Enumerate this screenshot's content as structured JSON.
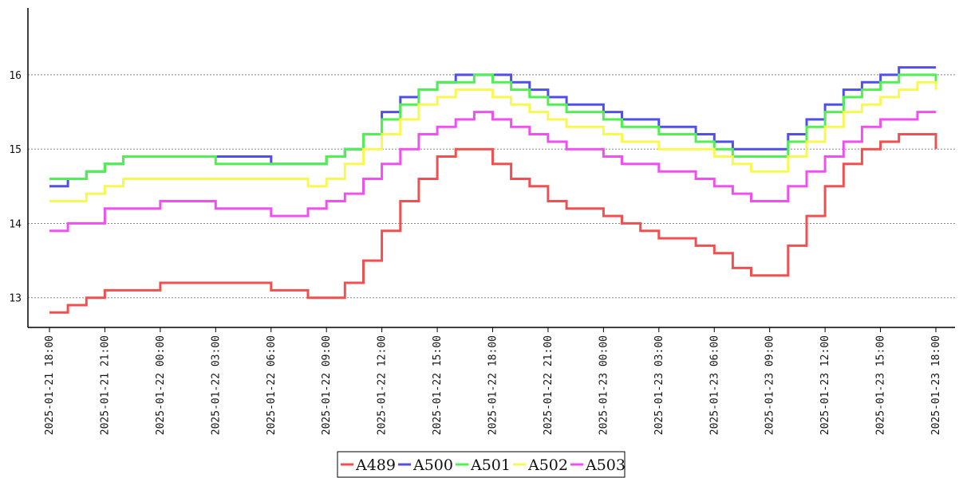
{
  "chart_data": {
    "type": "line",
    "title": "",
    "xlabel": "",
    "ylabel": "",
    "x_ticks": [
      "2025-01-21 18:00",
      "2025-01-21 21:00",
      "2025-01-22 00:00",
      "2025-01-22 03:00",
      "2025-01-22 06:00",
      "2025-01-22 09:00",
      "2025-01-22 12:00",
      "2025-01-22 15:00",
      "2025-01-22 18:00",
      "2025-01-22 21:00",
      "2025-01-23 00:00",
      "2025-01-23 03:00",
      "2025-01-23 06:00",
      "2025-01-23 09:00",
      "2025-01-23 12:00",
      "2025-01-23 15:00",
      "2025-01-23 18:00"
    ],
    "y_ticks": [
      "13",
      "14",
      "15",
      "16"
    ],
    "ylim": [
      12.6,
      16.9
    ],
    "grid": "horizontal dotted",
    "legend_position": "bottom-center",
    "series": [
      {
        "name": "A489",
        "color": "#f05050",
        "x": [
          "2025-01-21 18:00",
          "2025-01-21 19:00",
          "2025-01-21 20:00",
          "2025-01-21 21:00",
          "2025-01-21 22:00",
          "2025-01-22 00:00",
          "2025-01-22 03:00",
          "2025-01-22 06:00",
          "2025-01-22 08:00",
          "2025-01-22 09:00",
          "2025-01-22 10:00",
          "2025-01-22 11:00",
          "2025-01-22 12:00",
          "2025-01-22 13:00",
          "2025-01-22 14:00",
          "2025-01-22 15:00",
          "2025-01-22 16:00",
          "2025-01-22 17:00",
          "2025-01-22 18:00",
          "2025-01-22 19:00",
          "2025-01-22 20:00",
          "2025-01-22 21:00",
          "2025-01-22 22:00",
          "2025-01-23 00:00",
          "2025-01-23 01:00",
          "2025-01-23 02:00",
          "2025-01-23 03:00",
          "2025-01-23 04:00",
          "2025-01-23 05:00",
          "2025-01-23 06:00",
          "2025-01-23 07:00",
          "2025-01-23 08:00",
          "2025-01-23 09:00",
          "2025-01-23 10:00",
          "2025-01-23 11:00",
          "2025-01-23 12:00",
          "2025-01-23 13:00",
          "2025-01-23 14:00",
          "2025-01-23 15:00",
          "2025-01-23 16:00",
          "2025-01-23 17:00",
          "2025-01-23 18:00"
        ],
        "values": [
          12.8,
          12.9,
          13.0,
          13.1,
          13.1,
          13.2,
          13.2,
          13.1,
          13.0,
          13.0,
          13.2,
          13.5,
          13.9,
          14.3,
          14.6,
          14.9,
          15.0,
          15.0,
          14.8,
          14.6,
          14.5,
          14.3,
          14.2,
          14.1,
          14.0,
          13.9,
          13.8,
          13.8,
          13.7,
          13.6,
          13.4,
          13.3,
          13.3,
          13.7,
          14.1,
          14.5,
          14.8,
          15.0,
          15.1,
          15.2,
          15.2,
          15.0
        ]
      },
      {
        "name": "A500",
        "color": "#5050e8",
        "x": [
          "2025-01-21 18:00",
          "2025-01-21 19:00",
          "2025-01-21 20:00",
          "2025-01-21 21:00",
          "2025-01-21 22:00",
          "2025-01-22 00:00",
          "2025-01-22 03:00",
          "2025-01-22 06:00",
          "2025-01-22 08:00",
          "2025-01-22 09:00",
          "2025-01-22 10:00",
          "2025-01-22 11:00",
          "2025-01-22 12:00",
          "2025-01-22 13:00",
          "2025-01-22 14:00",
          "2025-01-22 15:00",
          "2025-01-22 16:00",
          "2025-01-22 17:00",
          "2025-01-22 18:00",
          "2025-01-22 19:00",
          "2025-01-22 20:00",
          "2025-01-22 21:00",
          "2025-01-22 22:00",
          "2025-01-23 00:00",
          "2025-01-23 01:00",
          "2025-01-23 02:00",
          "2025-01-23 03:00",
          "2025-01-23 04:00",
          "2025-01-23 05:00",
          "2025-01-23 06:00",
          "2025-01-23 07:00",
          "2025-01-23 08:00",
          "2025-01-23 09:00",
          "2025-01-23 10:00",
          "2025-01-23 11:00",
          "2025-01-23 12:00",
          "2025-01-23 13:00",
          "2025-01-23 14:00",
          "2025-01-23 15:00",
          "2025-01-23 16:00",
          "2025-01-23 17:00",
          "2025-01-23 18:00"
        ],
        "values": [
          14.5,
          14.6,
          14.7,
          14.8,
          14.9,
          14.9,
          14.9,
          14.8,
          14.8,
          14.9,
          15.0,
          15.2,
          15.5,
          15.7,
          15.8,
          15.9,
          16.0,
          16.0,
          16.0,
          15.9,
          15.8,
          15.7,
          15.6,
          15.5,
          15.4,
          15.4,
          15.3,
          15.3,
          15.2,
          15.1,
          15.0,
          15.0,
          15.0,
          15.2,
          15.4,
          15.6,
          15.8,
          15.9,
          16.0,
          16.1,
          16.1,
          16.1
        ]
      },
      {
        "name": "A501",
        "color": "#50f050",
        "x": [
          "2025-01-21 18:00",
          "2025-01-21 19:00",
          "2025-01-21 20:00",
          "2025-01-21 21:00",
          "2025-01-21 22:00",
          "2025-01-22 00:00",
          "2025-01-22 03:00",
          "2025-01-22 06:00",
          "2025-01-22 08:00",
          "2025-01-22 09:00",
          "2025-01-22 10:00",
          "2025-01-22 11:00",
          "2025-01-22 12:00",
          "2025-01-22 13:00",
          "2025-01-22 14:00",
          "2025-01-22 15:00",
          "2025-01-22 16:00",
          "2025-01-22 17:00",
          "2025-01-22 18:00",
          "2025-01-22 19:00",
          "2025-01-22 20:00",
          "2025-01-22 21:00",
          "2025-01-22 22:00",
          "2025-01-23 00:00",
          "2025-01-23 01:00",
          "2025-01-23 02:00",
          "2025-01-23 03:00",
          "2025-01-23 04:00",
          "2025-01-23 05:00",
          "2025-01-23 06:00",
          "2025-01-23 07:00",
          "2025-01-23 08:00",
          "2025-01-23 09:00",
          "2025-01-23 10:00",
          "2025-01-23 11:00",
          "2025-01-23 12:00",
          "2025-01-23 13:00",
          "2025-01-23 14:00",
          "2025-01-23 15:00",
          "2025-01-23 16:00",
          "2025-01-23 17:00",
          "2025-01-23 18:00"
        ],
        "values": [
          14.6,
          14.6,
          14.7,
          14.8,
          14.9,
          14.9,
          14.8,
          14.8,
          14.8,
          14.9,
          15.0,
          15.2,
          15.4,
          15.6,
          15.8,
          15.9,
          15.9,
          16.0,
          15.9,
          15.8,
          15.7,
          15.6,
          15.5,
          15.4,
          15.3,
          15.3,
          15.2,
          15.2,
          15.1,
          15.0,
          14.9,
          14.9,
          14.9,
          15.1,
          15.3,
          15.5,
          15.7,
          15.8,
          15.9,
          16.0,
          16.0,
          15.9
        ]
      },
      {
        "name": "A502",
        "color": "#f8f850",
        "x": [
          "2025-01-21 18:00",
          "2025-01-21 19:00",
          "2025-01-21 20:00",
          "2025-01-21 21:00",
          "2025-01-21 22:00",
          "2025-01-22 00:00",
          "2025-01-22 03:00",
          "2025-01-22 06:00",
          "2025-01-22 08:00",
          "2025-01-22 09:00",
          "2025-01-22 10:00",
          "2025-01-22 11:00",
          "2025-01-22 12:00",
          "2025-01-22 13:00",
          "2025-01-22 14:00",
          "2025-01-22 15:00",
          "2025-01-22 16:00",
          "2025-01-22 17:00",
          "2025-01-22 18:00",
          "2025-01-22 19:00",
          "2025-01-22 20:00",
          "2025-01-22 21:00",
          "2025-01-22 22:00",
          "2025-01-23 00:00",
          "2025-01-23 01:00",
          "2025-01-23 02:00",
          "2025-01-23 03:00",
          "2025-01-23 04:00",
          "2025-01-23 05:00",
          "2025-01-23 06:00",
          "2025-01-23 07:00",
          "2025-01-23 08:00",
          "2025-01-23 09:00",
          "2025-01-23 10:00",
          "2025-01-23 11:00",
          "2025-01-23 12:00",
          "2025-01-23 13:00",
          "2025-01-23 14:00",
          "2025-01-23 15:00",
          "2025-01-23 16:00",
          "2025-01-23 17:00",
          "2025-01-23 18:00"
        ],
        "values": [
          14.3,
          14.3,
          14.4,
          14.5,
          14.6,
          14.6,
          14.6,
          14.6,
          14.5,
          14.6,
          14.8,
          15.0,
          15.2,
          15.4,
          15.6,
          15.7,
          15.8,
          15.8,
          15.7,
          15.6,
          15.5,
          15.4,
          15.3,
          15.2,
          15.1,
          15.1,
          15.0,
          15.0,
          15.0,
          14.9,
          14.8,
          14.7,
          14.7,
          14.9,
          15.1,
          15.3,
          15.5,
          15.6,
          15.7,
          15.8,
          15.9,
          15.8
        ]
      },
      {
        "name": "A503",
        "color": "#f050f0",
        "x": [
          "2025-01-21 18:00",
          "2025-01-21 19:00",
          "2025-01-21 20:00",
          "2025-01-21 21:00",
          "2025-01-21 22:00",
          "2025-01-22 00:00",
          "2025-01-22 03:00",
          "2025-01-22 06:00",
          "2025-01-22 08:00",
          "2025-01-22 09:00",
          "2025-01-22 10:00",
          "2025-01-22 11:00",
          "2025-01-22 12:00",
          "2025-01-22 13:00",
          "2025-01-22 14:00",
          "2025-01-22 15:00",
          "2025-01-22 16:00",
          "2025-01-22 17:00",
          "2025-01-22 18:00",
          "2025-01-22 19:00",
          "2025-01-22 20:00",
          "2025-01-22 21:00",
          "2025-01-22 22:00",
          "2025-01-23 00:00",
          "2025-01-23 01:00",
          "2025-01-23 02:00",
          "2025-01-23 03:00",
          "2025-01-23 04:00",
          "2025-01-23 05:00",
          "2025-01-23 06:00",
          "2025-01-23 07:00",
          "2025-01-23 08:00",
          "2025-01-23 09:00",
          "2025-01-23 10:00",
          "2025-01-23 11:00",
          "2025-01-23 12:00",
          "2025-01-23 13:00",
          "2025-01-23 14:00",
          "2025-01-23 15:00",
          "2025-01-23 16:00",
          "2025-01-23 17:00",
          "2025-01-23 18:00"
        ],
        "values": [
          13.9,
          14.0,
          14.0,
          14.2,
          14.2,
          14.3,
          14.2,
          14.1,
          14.2,
          14.3,
          14.4,
          14.6,
          14.8,
          15.0,
          15.2,
          15.3,
          15.4,
          15.5,
          15.4,
          15.3,
          15.2,
          15.1,
          15.0,
          14.9,
          14.8,
          14.8,
          14.7,
          14.7,
          14.6,
          14.5,
          14.4,
          14.3,
          14.3,
          14.5,
          14.7,
          14.9,
          15.1,
          15.3,
          15.4,
          15.4,
          15.5,
          15.5
        ]
      }
    ]
  }
}
